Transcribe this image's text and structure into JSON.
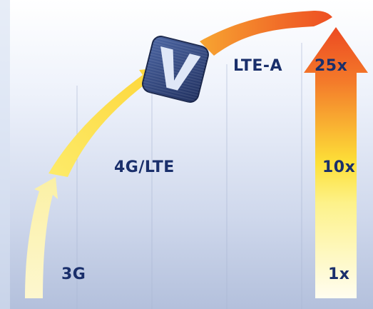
{
  "labels": {
    "g3": "3G",
    "g4": "4G/LTE",
    "lte_a": "LTE-A",
    "m25": "25x",
    "m10": "10x",
    "m1": "1x"
  },
  "colors": {
    "arc_start": "#fdf7cf",
    "arc_mid": "#fde038",
    "arc_end": "#ee4f22",
    "text": "#1a2f6b",
    "logo": "#2e4478"
  },
  "icons": {
    "logo": "v-logo-icon"
  }
}
